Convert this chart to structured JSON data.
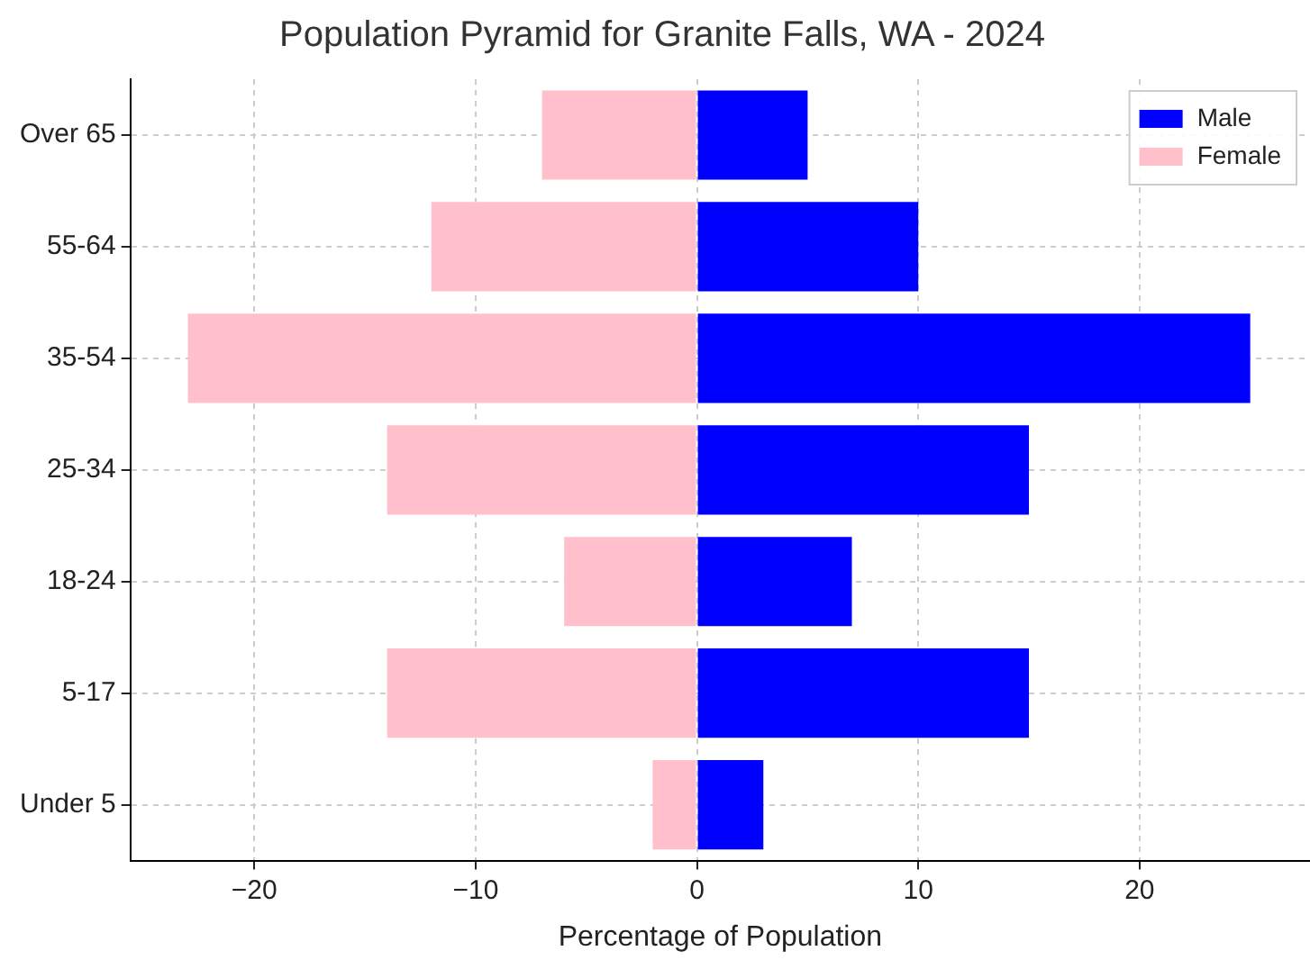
{
  "chart_data": {
    "type": "bar",
    "orientation": "horizontal",
    "stacked": true,
    "title": "Population Pyramid for Granite Falls, WA - 2024",
    "xlabel": "Percentage of Population",
    "categories": [
      "Over 65",
      "55-64",
      "35-54",
      "25-34",
      "18-24",
      "5-17",
      "Under 5"
    ],
    "series": [
      {
        "name": "Male",
        "color": "#0000ff",
        "values": [
          5,
          10,
          25,
          15,
          7,
          15,
          3
        ]
      },
      {
        "name": "Female",
        "color": "#ffc0cb",
        "values": [
          -7,
          -12,
          -23,
          -14,
          -6,
          -14,
          -2
        ]
      }
    ],
    "xlim": [
      -25.6,
      27.7
    ],
    "xticks": [
      {
        "value": -20,
        "label": "−20"
      },
      {
        "value": -10,
        "label": "−10"
      },
      0,
      10,
      20
    ],
    "grid": true,
    "legend": "top right"
  }
}
